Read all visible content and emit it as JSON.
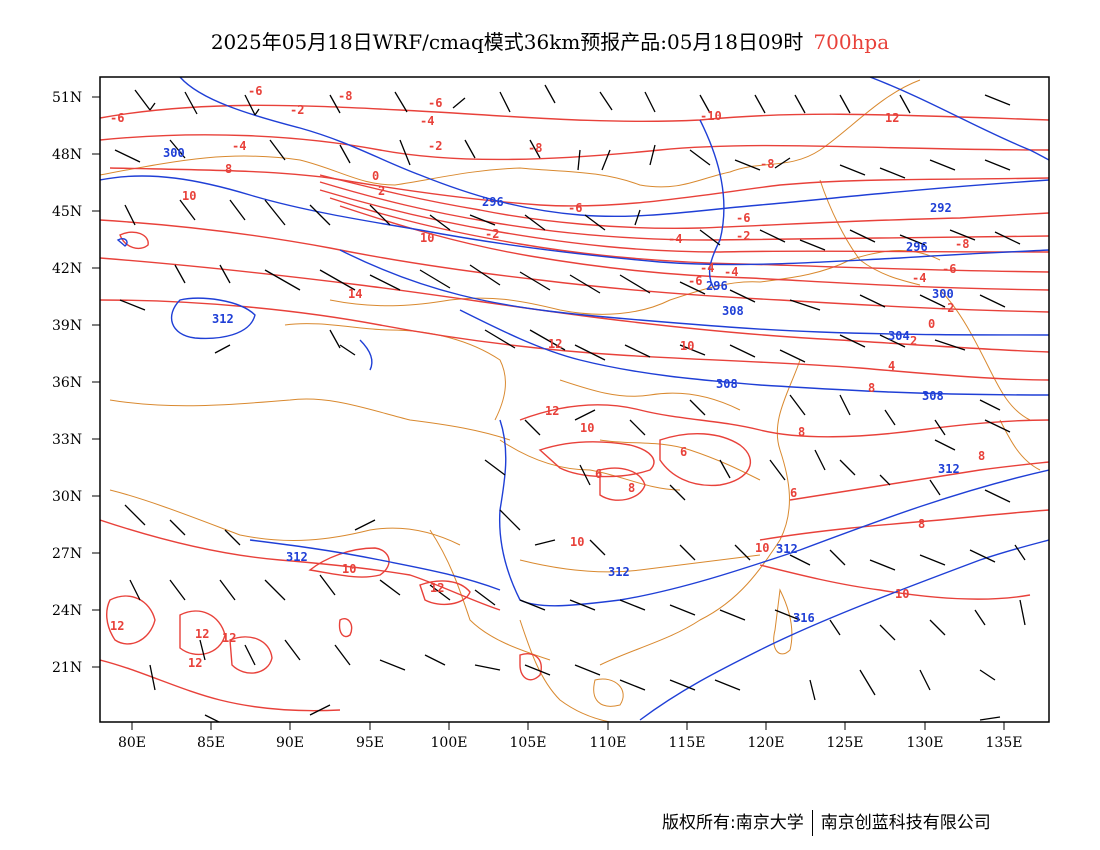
{
  "title": {
    "main": "2025年05月18日WRF/cmaq模式36km预报产品:05月18日09时",
    "level": "700hpa"
  },
  "footer": {
    "left": "版权所有:南京大学",
    "right": "南京创蓝科技有限公司"
  },
  "axes": {
    "lon_ticks": [
      "80E",
      "85E",
      "90E",
      "95E",
      "100E",
      "105E",
      "110E",
      "115E",
      "120E",
      "125E",
      "130E",
      "135E"
    ],
    "lat_ticks": [
      "51N",
      "48N",
      "45N",
      "42N",
      "39N",
      "36N",
      "33N",
      "30N",
      "27N",
      "24N",
      "21N"
    ]
  },
  "colors": {
    "temperature": "#e8413a",
    "height": "#1f3fd6",
    "border": "#d9892f",
    "wind": "#000000"
  },
  "temperature_labels": [
    "-6",
    "-2",
    "-8",
    "-6",
    "-4",
    "-10",
    "12",
    "-4",
    "-2",
    "-8",
    "-6",
    "8",
    "2",
    "0",
    "10",
    "-8",
    "-4",
    "-6",
    "-2",
    "-4",
    "-6",
    "-2",
    "-4",
    "-6",
    "-8",
    "-6",
    "-4",
    "-2",
    "0",
    "2",
    "4",
    "10",
    "14",
    "12",
    "10",
    "12",
    "10",
    "8",
    "8",
    "8",
    "8",
    "10",
    "12",
    "12",
    "10",
    "12",
    "12",
    "12",
    "10",
    "10",
    "8",
    "6",
    "6",
    "6"
  ],
  "height_labels": [
    "300",
    "296",
    "296",
    "292",
    "296",
    "300",
    "304",
    "308",
    "312",
    "312",
    "312",
    "312",
    "312",
    "316",
    "308",
    "308"
  ]
}
